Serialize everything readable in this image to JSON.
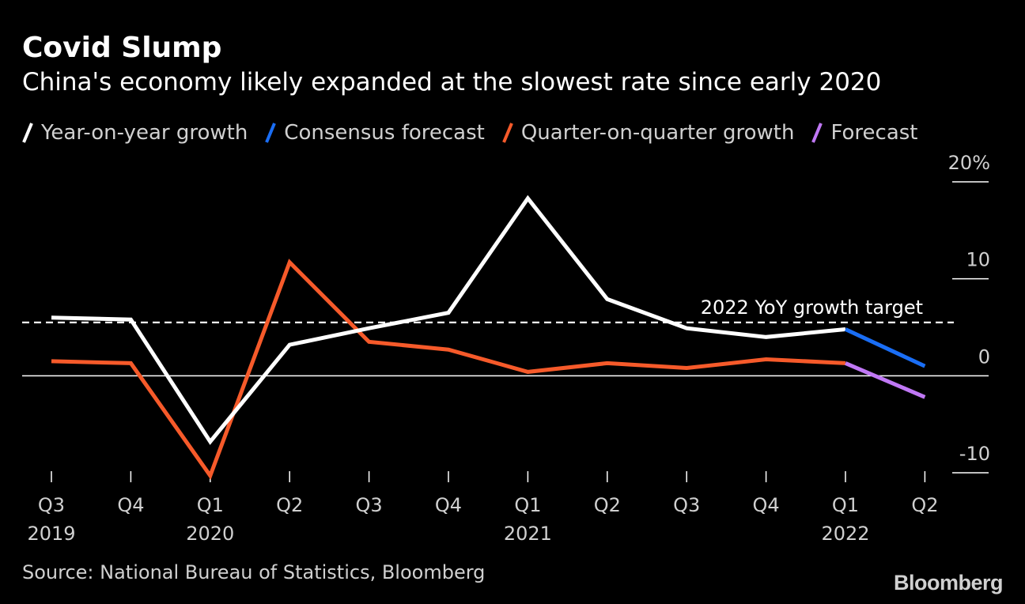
{
  "header": {
    "title": "Covid Slump",
    "subtitle": "China's economy likely expanded at the slowest rate since early 2020"
  },
  "legend": [
    {
      "label": "Year-on-year growth",
      "color": "#ffffff"
    },
    {
      "label": "Consensus forecast",
      "color": "#1a6ef5"
    },
    {
      "label": "Quarter-on-quarter growth",
      "color": "#f65a2a"
    },
    {
      "label": "Forecast",
      "color": "#c078f5"
    }
  ],
  "chart_data": {
    "type": "line",
    "categories": [
      "Q3 2019",
      "Q4 2019",
      "Q1 2020",
      "Q2 2020",
      "Q3 2020",
      "Q4 2020",
      "Q1 2021",
      "Q2 2021",
      "Q3 2021",
      "Q4 2021",
      "Q1 2022",
      "Q2 2022"
    ],
    "x_tick_labels": [
      {
        "q": "Q3",
        "year": "2019"
      },
      {
        "q": "Q4",
        "year": ""
      },
      {
        "q": "Q1",
        "year": "2020"
      },
      {
        "q": "Q2",
        "year": ""
      },
      {
        "q": "Q3",
        "year": ""
      },
      {
        "q": "Q4",
        "year": ""
      },
      {
        "q": "Q1",
        "year": "2021"
      },
      {
        "q": "Q2",
        "year": ""
      },
      {
        "q": "Q3",
        "year": ""
      },
      {
        "q": "Q4",
        "year": ""
      },
      {
        "q": "Q1",
        "year": "2022"
      },
      {
        "q": "Q2",
        "year": ""
      }
    ],
    "series": [
      {
        "name": "Year-on-year growth",
        "color": "#ffffff",
        "values": [
          6.0,
          5.8,
          -6.8,
          3.2,
          4.9,
          6.5,
          18.3,
          7.9,
          4.9,
          4.0,
          4.8,
          null
        ]
      },
      {
        "name": "Consensus forecast",
        "color": "#1a6ef5",
        "values": [
          null,
          null,
          null,
          null,
          null,
          null,
          null,
          null,
          null,
          null,
          4.8,
          1.0
        ]
      },
      {
        "name": "Quarter-on-quarter growth",
        "color": "#f65a2a",
        "values": [
          1.5,
          1.3,
          -10.3,
          11.7,
          3.5,
          2.7,
          0.4,
          1.3,
          0.8,
          1.7,
          1.3,
          null
        ]
      },
      {
        "name": "Forecast",
        "color": "#c078f5",
        "values": [
          null,
          null,
          null,
          null,
          null,
          null,
          null,
          null,
          null,
          null,
          1.3,
          -2.2
        ]
      }
    ],
    "reference_line": {
      "label": "2022 YoY growth target",
      "value": 5.5
    },
    "y_ticks": [
      {
        "value": 20,
        "label": "20%"
      },
      {
        "value": 10,
        "label": "10"
      },
      {
        "value": 0,
        "label": "0"
      },
      {
        "value": -10,
        "label": "-10"
      }
    ],
    "ylim": [
      -10,
      20
    ],
    "y_axis_position": "right",
    "grid": false,
    "legend_position": "top-left"
  },
  "footer": {
    "source": "Source: National Bureau of Statistics, Bloomberg",
    "logo_text": "Bloomberg"
  }
}
